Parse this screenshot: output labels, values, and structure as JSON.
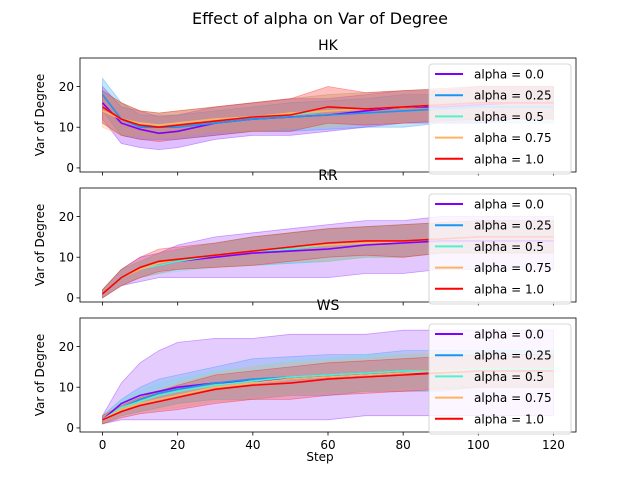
{
  "figure": {
    "suptitle": "Effect of alpha on  Var of Degree",
    "xlabel": "Step",
    "ylabel": "Var of Degree"
  },
  "chart_data": [
    {
      "type": "line",
      "title": "HK",
      "xlabel": "",
      "ylabel": "Var of Degree",
      "xlim": [
        -6,
        126
      ],
      "ylim": [
        -1,
        27
      ],
      "xticks": [
        0,
        20,
        40,
        60,
        80,
        100,
        120
      ],
      "yticks": [
        0,
        10,
        20
      ],
      "show_xtick_labels": false,
      "legend_position": "right",
      "grid": false,
      "series": [
        {
          "name": "alpha = 0.0",
          "color": "#7f00ff",
          "band_opacity": 0.25,
          "x": [
            0,
            5,
            10,
            15,
            20,
            30,
            40,
            50,
            60,
            70,
            80,
            90,
            100,
            110,
            120
          ],
          "y": [
            16,
            11,
            9.5,
            8.5,
            9,
            11,
            12,
            12.5,
            13,
            14,
            15,
            15,
            15.5,
            16,
            16
          ],
          "lower": [
            12,
            6,
            5,
            4.5,
            5,
            7,
            8,
            8,
            9,
            10,
            11,
            11,
            11,
            12,
            12
          ],
          "upper": [
            20,
            15,
            14,
            12.5,
            13,
            15,
            16,
            17,
            17,
            18,
            19,
            19,
            20,
            20,
            20
          ]
        },
        {
          "name": "alpha = 0.25",
          "color": "#1996f3",
          "band_opacity": 0.25,
          "x": [
            0,
            5,
            10,
            15,
            20,
            30,
            40,
            50,
            60,
            70,
            80,
            90,
            100,
            110,
            120
          ],
          "y": [
            18,
            12,
            10,
            10,
            10,
            11,
            12,
            12.5,
            13,
            13.5,
            14,
            14.5,
            15,
            15,
            15
          ],
          "lower": [
            14,
            8,
            7,
            7,
            7,
            8,
            9,
            9,
            9.5,
            10,
            10,
            11,
            11,
            11,
            11
          ],
          "upper": [
            22,
            16,
            13,
            13,
            13,
            14,
            15,
            16,
            16.5,
            17,
            18,
            18,
            19,
            19,
            19
          ]
        },
        {
          "name": "alpha = 0.5",
          "color": "#4df3ce",
          "band_opacity": 0.22,
          "x": [
            0,
            5,
            10,
            15,
            20,
            30,
            40,
            50,
            60,
            70,
            80,
            90,
            100,
            110,
            120
          ],
          "y": [
            15,
            12,
            11,
            10.5,
            11,
            12,
            12.5,
            13,
            14,
            14.5,
            15,
            15.5,
            16,
            16,
            16
          ],
          "lower": [
            11,
            8,
            8,
            7.5,
            8,
            9,
            9,
            9.5,
            10,
            11,
            11,
            12,
            12,
            12,
            12
          ],
          "upper": [
            19,
            16,
            14,
            13.5,
            14,
            15,
            16,
            17,
            18,
            18.5,
            19,
            19.5,
            20,
            20,
            20
          ]
        },
        {
          "name": "alpha = 0.75",
          "color": "#ffb360",
          "band_opacity": 0.25,
          "x": [
            0,
            5,
            10,
            15,
            20,
            30,
            40,
            50,
            60,
            70,
            80,
            90,
            100,
            110,
            120
          ],
          "y": [
            14,
            12,
            11,
            10.5,
            11,
            12,
            12.5,
            13.5,
            14,
            14.5,
            15,
            15.5,
            16,
            16,
            16
          ],
          "lower": [
            10,
            8,
            8,
            7.5,
            8,
            9,
            9,
            10,
            10,
            11,
            11,
            12,
            12,
            12,
            12
          ],
          "upper": [
            18,
            16,
            14,
            13.5,
            14,
            15,
            16,
            17,
            18,
            18.5,
            19,
            19,
            20,
            20,
            20
          ]
        },
        {
          "name": "alpha = 1.0",
          "color": "#ff0000",
          "band_opacity": 0.25,
          "x": [
            0,
            5,
            10,
            15,
            20,
            30,
            40,
            50,
            60,
            70,
            80,
            90,
            100,
            110,
            120
          ],
          "y": [
            15,
            12,
            10.5,
            10,
            10.5,
            11.5,
            12.5,
            13,
            15,
            14.5,
            15,
            15.5,
            16,
            16,
            16
          ],
          "lower": [
            11,
            8,
            7,
            6.5,
            7,
            8,
            9,
            9,
            11,
            10.5,
            11,
            11.5,
            12,
            12,
            12
          ],
          "upper": [
            19,
            16,
            14,
            13.5,
            14,
            15,
            16,
            17,
            20,
            18.5,
            19,
            19.5,
            20,
            20,
            20
          ]
        }
      ]
    },
    {
      "type": "line",
      "title": "RR",
      "xlabel": "",
      "ylabel": "Var of Degree",
      "xlim": [
        -6,
        126
      ],
      "ylim": [
        -1,
        27
      ],
      "xticks": [
        0,
        20,
        40,
        60,
        80,
        100,
        120
      ],
      "yticks": [
        0,
        10,
        20
      ],
      "show_xtick_labels": false,
      "legend_position": "right",
      "grid": false,
      "series": [
        {
          "name": "alpha = 0.0",
          "color": "#7f00ff",
          "band_opacity": 0.22,
          "x": [
            0,
            5,
            10,
            15,
            20,
            30,
            40,
            50,
            60,
            70,
            80,
            90,
            100,
            110,
            120
          ],
          "y": [
            1,
            5,
            7,
            8,
            9,
            10,
            11,
            11.5,
            12,
            13,
            13.5,
            14,
            14,
            14,
            14
          ],
          "lower": [
            0,
            3,
            4,
            5,
            5,
            5,
            5,
            5,
            5,
            6,
            6,
            7,
            7,
            7,
            7
          ],
          "upper": [
            2,
            7,
            10,
            11,
            13,
            15,
            16,
            17,
            18,
            19,
            19,
            20,
            20,
            20,
            20
          ]
        },
        {
          "name": "alpha = 0.25",
          "color": "#1996f3",
          "band_opacity": 0.22,
          "x": [
            0,
            5,
            10,
            15,
            20,
            30,
            40,
            50,
            60,
            70,
            80,
            90,
            100,
            110,
            120
          ],
          "y": [
            1,
            5,
            7,
            8.5,
            9.5,
            10.5,
            11.5,
            12,
            13,
            13.5,
            14,
            14.5,
            15,
            15,
            15
          ],
          "lower": [
            0,
            3,
            5,
            6,
            7,
            7.5,
            8,
            8.5,
            9,
            10,
            10,
            11,
            11,
            11,
            11
          ],
          "upper": [
            2,
            7,
            9,
            11,
            12,
            13.5,
            15,
            16,
            17,
            17.5,
            18,
            18.5,
            19,
            19,
            19
          ]
        },
        {
          "name": "alpha = 0.5",
          "color": "#4df3ce",
          "band_opacity": 0.2,
          "x": [
            0,
            5,
            10,
            15,
            20,
            30,
            40,
            50,
            60,
            70,
            80,
            90,
            100,
            110,
            120
          ],
          "y": [
            1,
            5,
            7,
            8,
            9,
            10.5,
            11.5,
            12,
            13,
            13.5,
            14,
            14.5,
            15,
            15,
            15
          ],
          "lower": [
            0,
            3,
            5,
            6,
            6.5,
            7.5,
            8,
            8.5,
            9,
            10,
            10,
            11,
            11,
            11,
            11
          ],
          "upper": [
            2,
            7,
            9,
            10,
            11.5,
            13.5,
            15,
            16,
            17,
            17.5,
            18,
            18.5,
            19,
            19,
            19
          ]
        },
        {
          "name": "alpha = 0.75",
          "color": "#ffb360",
          "band_opacity": 0.22,
          "x": [
            0,
            5,
            10,
            15,
            20,
            30,
            40,
            50,
            60,
            70,
            80,
            90,
            100,
            110,
            120
          ],
          "y": [
            1,
            5,
            7,
            8.5,
            9.5,
            10.5,
            11.5,
            12.5,
            13,
            13.5,
            14,
            14.5,
            15,
            15,
            15
          ],
          "lower": [
            0,
            3,
            5,
            6,
            7,
            7.5,
            8,
            9,
            9,
            10,
            10,
            11,
            11,
            11,
            11
          ],
          "upper": [
            2,
            7,
            9,
            11,
            12,
            13.5,
            15,
            16,
            17,
            17.5,
            18,
            18.5,
            19,
            19,
            19
          ]
        },
        {
          "name": "alpha = 1.0",
          "color": "#ff0000",
          "band_opacity": 0.22,
          "x": [
            0,
            5,
            10,
            15,
            20,
            30,
            40,
            50,
            60,
            70,
            80,
            90,
            100,
            110,
            120
          ],
          "y": [
            1,
            5,
            7.5,
            9,
            9.5,
            10.5,
            11.5,
            12.5,
            13.5,
            14,
            14,
            14.5,
            15,
            15,
            15
          ],
          "lower": [
            0,
            3,
            5,
            6.5,
            7,
            7.5,
            8,
            9,
            10,
            10.5,
            10,
            11,
            11,
            11,
            11
          ],
          "upper": [
            2,
            7,
            10,
            12,
            12.5,
            13.5,
            15,
            16,
            17,
            17.5,
            18,
            18.5,
            19,
            19,
            19
          ]
        }
      ]
    },
    {
      "type": "line",
      "title": "WS",
      "xlabel": "Step",
      "ylabel": "Var of Degree",
      "xlim": [
        -6,
        126
      ],
      "ylim": [
        -1,
        27
      ],
      "xticks": [
        0,
        20,
        40,
        60,
        80,
        100,
        120
      ],
      "yticks": [
        0,
        10,
        20
      ],
      "show_xtick_labels": true,
      "legend_position": "right",
      "grid": false,
      "series": [
        {
          "name": "alpha = 0.0",
          "color": "#7f00ff",
          "band_opacity": 0.2,
          "x": [
            0,
            5,
            10,
            15,
            20,
            30,
            40,
            50,
            60,
            70,
            80,
            90,
            100,
            110,
            120
          ],
          "y": [
            2,
            6,
            8,
            9,
            10,
            11,
            11.5,
            12,
            12.5,
            13,
            13.5,
            13.5,
            14,
            14,
            14
          ],
          "lower": [
            1,
            2,
            2,
            2,
            2,
            2,
            2,
            2,
            2,
            3,
            3,
            3,
            3,
            3,
            3
          ],
          "upper": [
            3,
            11,
            16,
            19,
            21,
            22,
            22,
            23,
            23,
            23,
            24,
            24,
            24,
            24,
            24
          ]
        },
        {
          "name": "alpha = 0.25",
          "color": "#1996f3",
          "band_opacity": 0.22,
          "x": [
            0,
            5,
            10,
            15,
            20,
            30,
            40,
            50,
            60,
            70,
            80,
            90,
            100,
            110,
            120
          ],
          "y": [
            2,
            5,
            7,
            8.5,
            9.5,
            11,
            12,
            12.5,
            13,
            13.5,
            14,
            14,
            14.5,
            14.5,
            14.5
          ],
          "lower": [
            1,
            3,
            4,
            5,
            6,
            7,
            7,
            8,
            8,
            9,
            9,
            9,
            10,
            10,
            10
          ],
          "upper": [
            3,
            7,
            10,
            12,
            13,
            15,
            17,
            17.5,
            18,
            18,
            19,
            19,
            19,
            19,
            19
          ]
        },
        {
          "name": "alpha = 0.5",
          "color": "#4df3ce",
          "band_opacity": 0.2,
          "x": [
            0,
            5,
            10,
            15,
            20,
            30,
            40,
            50,
            60,
            70,
            80,
            90,
            100,
            110,
            120
          ],
          "y": [
            2,
            5,
            6.5,
            8,
            9,
            10.5,
            11.5,
            12.5,
            13,
            13.5,
            14,
            14,
            14.5,
            14.5,
            14.5
          ],
          "lower": [
            1,
            3,
            4,
            5,
            6,
            7,
            8,
            8.5,
            9,
            9,
            10,
            10,
            10,
            10,
            10
          ],
          "upper": [
            3,
            7,
            9,
            11,
            12,
            14,
            15,
            16.5,
            17,
            18,
            18,
            18,
            19,
            19,
            19
          ]
        },
        {
          "name": "alpha = 0.75",
          "color": "#ffb360",
          "band_opacity": 0.22,
          "x": [
            0,
            5,
            10,
            15,
            20,
            30,
            40,
            50,
            60,
            70,
            80,
            90,
            100,
            110,
            120
          ],
          "y": [
            2,
            4.5,
            6,
            7,
            8,
            10,
            11,
            12,
            12.5,
            13,
            13.5,
            14,
            14,
            14,
            14
          ],
          "lower": [
            1,
            3,
            4,
            4.5,
            5,
            6.5,
            7,
            8,
            8.5,
            9,
            9,
            9.5,
            10,
            10,
            10
          ],
          "upper": [
            3,
            6,
            8,
            9.5,
            11,
            13.5,
            15,
            16,
            16.5,
            17,
            18,
            18.5,
            18,
            18,
            18
          ]
        },
        {
          "name": "alpha = 1.0",
          "color": "#ff0000",
          "band_opacity": 0.22,
          "x": [
            0,
            5,
            10,
            15,
            20,
            30,
            40,
            50,
            60,
            70,
            80,
            90,
            100,
            110,
            120
          ],
          "y": [
            2,
            4,
            5.5,
            6.5,
            7.5,
            9.5,
            10.5,
            11,
            12,
            12.5,
            13,
            13.5,
            14,
            14,
            14
          ],
          "lower": [
            1,
            2.5,
            3.5,
            4,
            4.5,
            6,
            7,
            7,
            8,
            8.5,
            9,
            9.5,
            10,
            10,
            10
          ],
          "upper": [
            3,
            5.5,
            7.5,
            9,
            10.5,
            13,
            14,
            15,
            16,
            16.5,
            17,
            17.5,
            18,
            18,
            18
          ]
        }
      ]
    }
  ]
}
